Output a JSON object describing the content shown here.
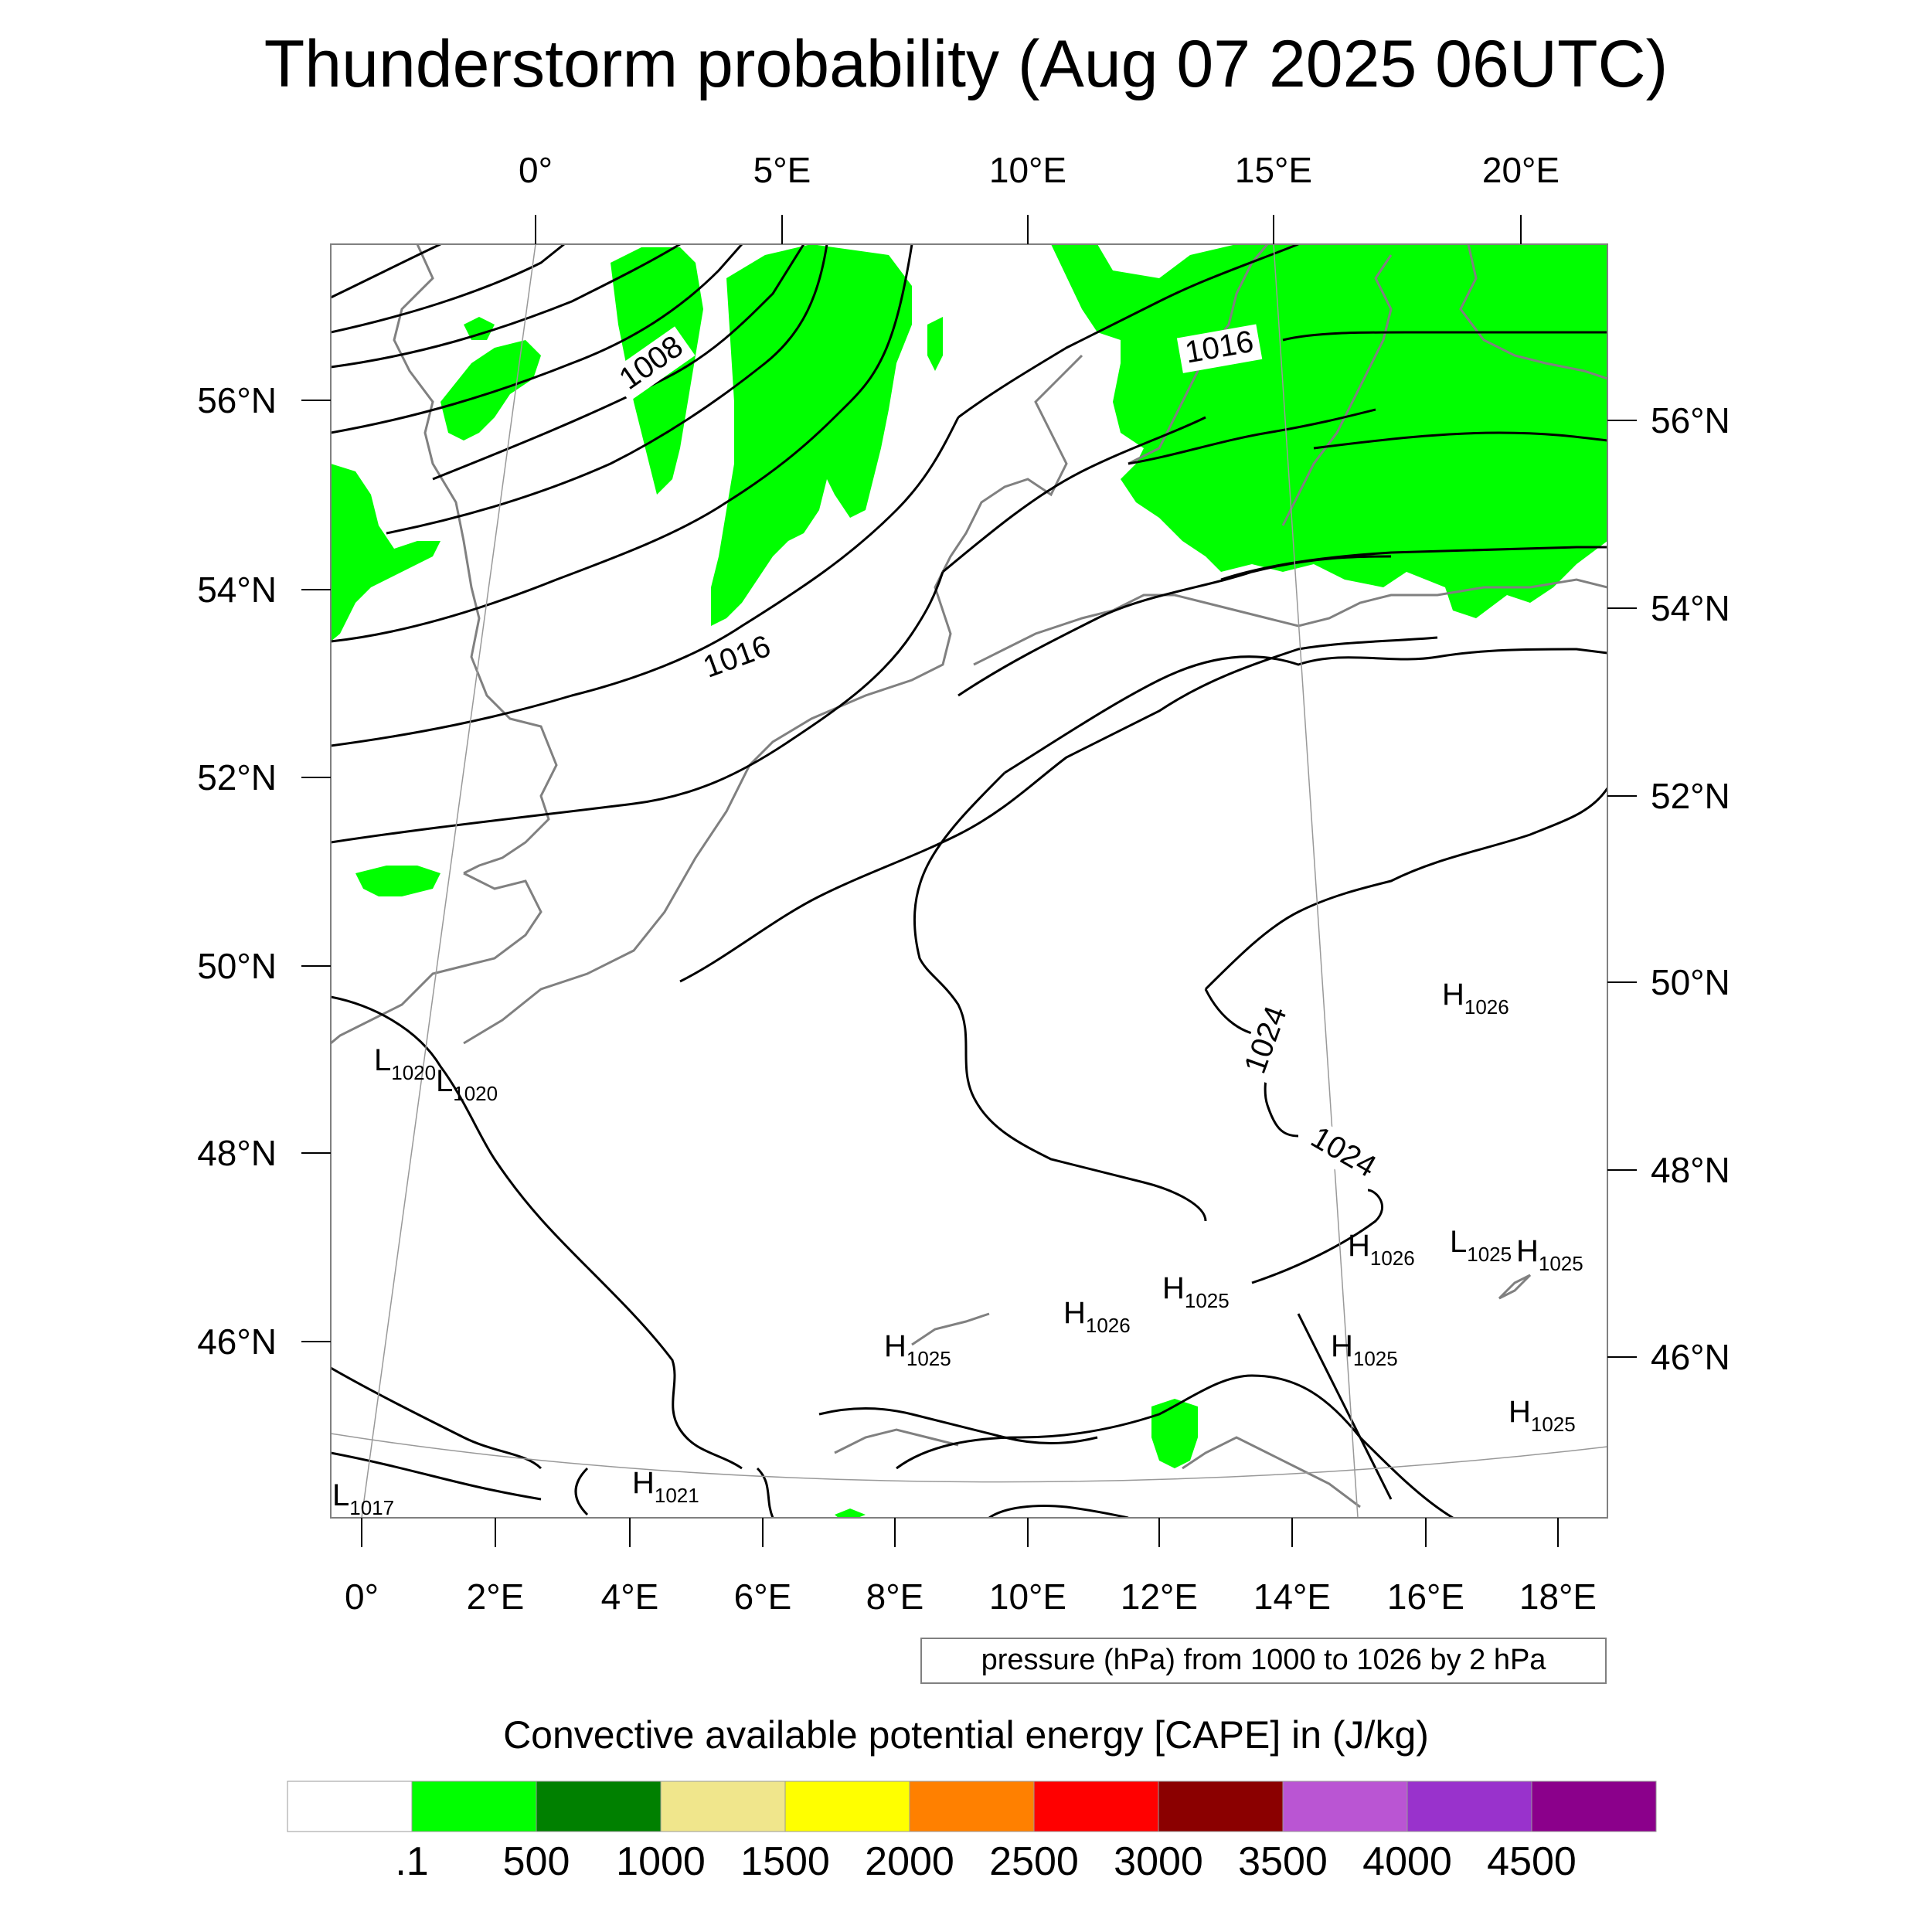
{
  "title": "Thunderstorm probability (Aug 07 2025 06UTC)",
  "top_lon_labels": [
    "0°",
    "5°E",
    "10°E",
    "15°E",
    "20°E"
  ],
  "bottom_lon_labels": [
    "0°",
    "2°E",
    "4°E",
    "6°E",
    "8°E",
    "10°E",
    "12°E",
    "14°E",
    "16°E",
    "18°E"
  ],
  "left_lat_labels": [
    "56°N",
    "54°N",
    "52°N",
    "50°N",
    "48°N",
    "46°N"
  ],
  "right_lat_labels": [
    "56°N",
    "54°N",
    "52°N",
    "50°N",
    "48°N",
    "46°N"
  ],
  "isobar_labels": [
    {
      "text": "1008",
      "angle": -35
    },
    {
      "text": "1016",
      "angle": -20
    },
    {
      "text": "1016",
      "angle": -10
    },
    {
      "text": "1024",
      "angle": -70
    },
    {
      "text": "1024",
      "angle": 30
    }
  ],
  "pressure_centers": [
    {
      "letter": "L",
      "value": "1020"
    },
    {
      "letter": "L",
      "value": "1020"
    },
    {
      "letter": "H",
      "value": "1026"
    },
    {
      "letter": "H",
      "value": "1026"
    },
    {
      "letter": "L",
      "value": "1025"
    },
    {
      "letter": "H",
      "value": "1025"
    },
    {
      "letter": "H",
      "value": "1025"
    },
    {
      "letter": "H",
      "value": "1026"
    },
    {
      "letter": "H",
      "value": "1025"
    },
    {
      "letter": "H",
      "value": "1025"
    },
    {
      "letter": "H",
      "value": "1025"
    },
    {
      "letter": "H",
      "value": "1021"
    },
    {
      "letter": "L",
      "value": "1017"
    }
  ],
  "contour_info": "pressure (hPa) from 1000 to 1026 by 2 hPa",
  "colorbar": {
    "title": "Convective available potential energy [CAPE] in (J/kg)",
    "colors": [
      "#ffffff",
      "#00ff00",
      "#008000",
      "#f0e68c",
      "#ffff00",
      "#ff8000",
      "#ff0000",
      "#8b0000",
      "#ba55d3",
      "#9932cc",
      "#8b008b"
    ],
    "labels": [
      ".1",
      "500",
      "1000",
      "1500",
      "2000",
      "2500",
      "3000",
      "3500",
      "4000",
      "4500"
    ]
  },
  "colors": {
    "cape_low": "#00ff00",
    "coastline": "#808080",
    "isobar": "#000000"
  }
}
